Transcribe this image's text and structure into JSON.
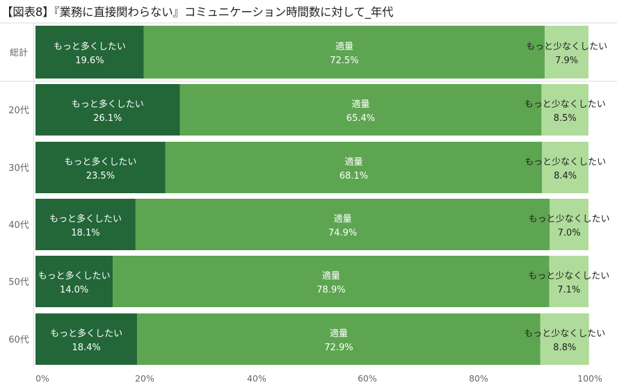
{
  "title": "【図表8】『業務に直接関わらない』コミュニケーション時間数に対して_年代",
  "colors": {
    "more": "#236638",
    "appropriate": "#5ea552",
    "less": "#b0dc9b",
    "separator": "#d9d9d9",
    "axis_text": "#666666"
  },
  "chart_data": {
    "type": "bar",
    "orientation": "horizontal",
    "stacked": true,
    "categories": [
      "総計",
      "20代",
      "30代",
      "40代",
      "50代",
      "60代"
    ],
    "series": [
      {
        "name": "もっと多くしたい",
        "values": [
          19.6,
          26.1,
          23.5,
          18.1,
          14.0,
          18.4
        ]
      },
      {
        "name": "適量",
        "values": [
          72.5,
          65.4,
          68.1,
          74.9,
          78.9,
          72.9
        ]
      },
      {
        "name": "もっと少なくしたい",
        "values": [
          7.9,
          8.5,
          8.4,
          7.0,
          7.1,
          8.8
        ]
      }
    ],
    "x_ticks": [
      "0%",
      "20%",
      "40%",
      "60%",
      "80%",
      "100%"
    ],
    "xlim": [
      0,
      100
    ],
    "value_suffix": "%",
    "grid": false
  }
}
